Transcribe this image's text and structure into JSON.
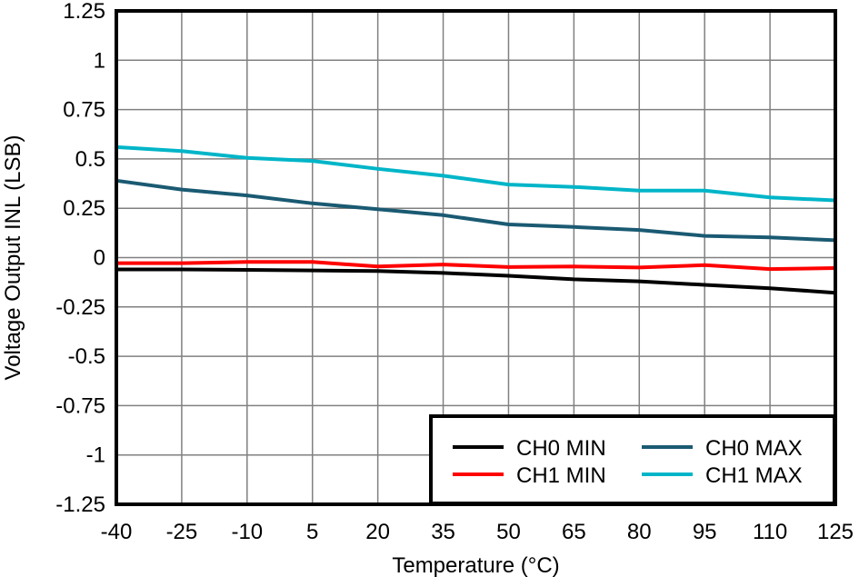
{
  "chart_data": {
    "type": "line",
    "title": "",
    "xlabel": "Temperature (°C)",
    "ylabel": "Voltage Output INL (LSB)",
    "xlim": [
      -40,
      125
    ],
    "ylim": [
      -1.25,
      1.25
    ],
    "x_ticks": [
      "-40",
      "-25",
      "-10",
      "5",
      "20",
      "35",
      "50",
      "65",
      "80",
      "95",
      "110",
      "125"
    ],
    "y_ticks": [
      "1.25",
      "1",
      "0.75",
      "0.5",
      "0.25",
      "0",
      "-0.25",
      "-0.5",
      "-0.75",
      "-1",
      "-1.25"
    ],
    "grid": true,
    "legend_position": "bottom-right",
    "x": [
      -40,
      -25,
      -10,
      5,
      20,
      35,
      50,
      65,
      80,
      95,
      110,
      125
    ],
    "series": [
      {
        "name": "CH0 MIN",
        "color": "#000000",
        "values": [
          -0.06,
          -0.06,
          -0.062,
          -0.065,
          -0.068,
          -0.078,
          -0.092,
          -0.11,
          -0.12,
          -0.138,
          -0.155,
          -0.178
        ]
      },
      {
        "name": "CH0 MAX",
        "color": "#1a5a72",
        "values": [
          0.39,
          0.345,
          0.315,
          0.275,
          0.245,
          0.215,
          0.168,
          0.155,
          0.14,
          0.11,
          0.102,
          0.088
        ]
      },
      {
        "name": "CH1 MIN",
        "color": "#ff0000",
        "values": [
          -0.028,
          -0.028,
          -0.022,
          -0.022,
          -0.045,
          -0.035,
          -0.048,
          -0.045,
          -0.05,
          -0.038,
          -0.058,
          -0.053
        ]
      },
      {
        "name": "CH1 MAX",
        "color": "#00b5c8",
        "values": [
          0.56,
          0.54,
          0.505,
          0.49,
          0.45,
          0.415,
          0.37,
          0.358,
          0.34,
          0.34,
          0.305,
          0.29
        ]
      }
    ]
  }
}
